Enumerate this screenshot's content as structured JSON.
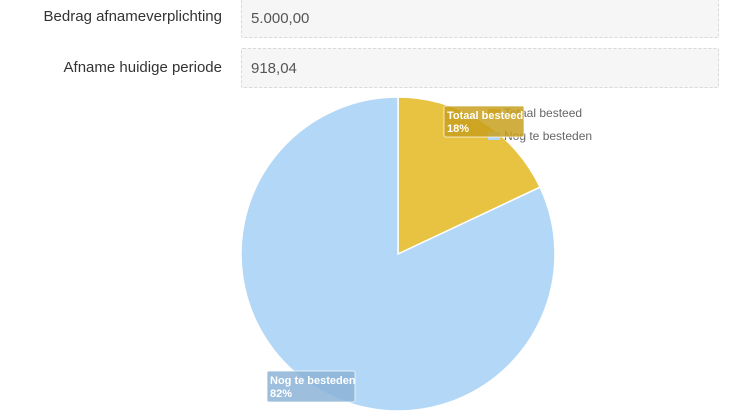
{
  "form": {
    "commitment_label": "Bedrag afnameverplichting",
    "commitment_value": "5.000,00",
    "current_label": "Afname huidige periode",
    "current_value": "918,04"
  },
  "chart_data": {
    "type": "pie",
    "title": "",
    "legend_position": "top-right",
    "slices": [
      {
        "name": "Totaal besteed",
        "value": 18,
        "label": "18%",
        "color": "#e8c241"
      },
      {
        "name": "Nog te besteden",
        "value": 82,
        "label": "82%",
        "color": "#b3d7f6"
      }
    ]
  }
}
